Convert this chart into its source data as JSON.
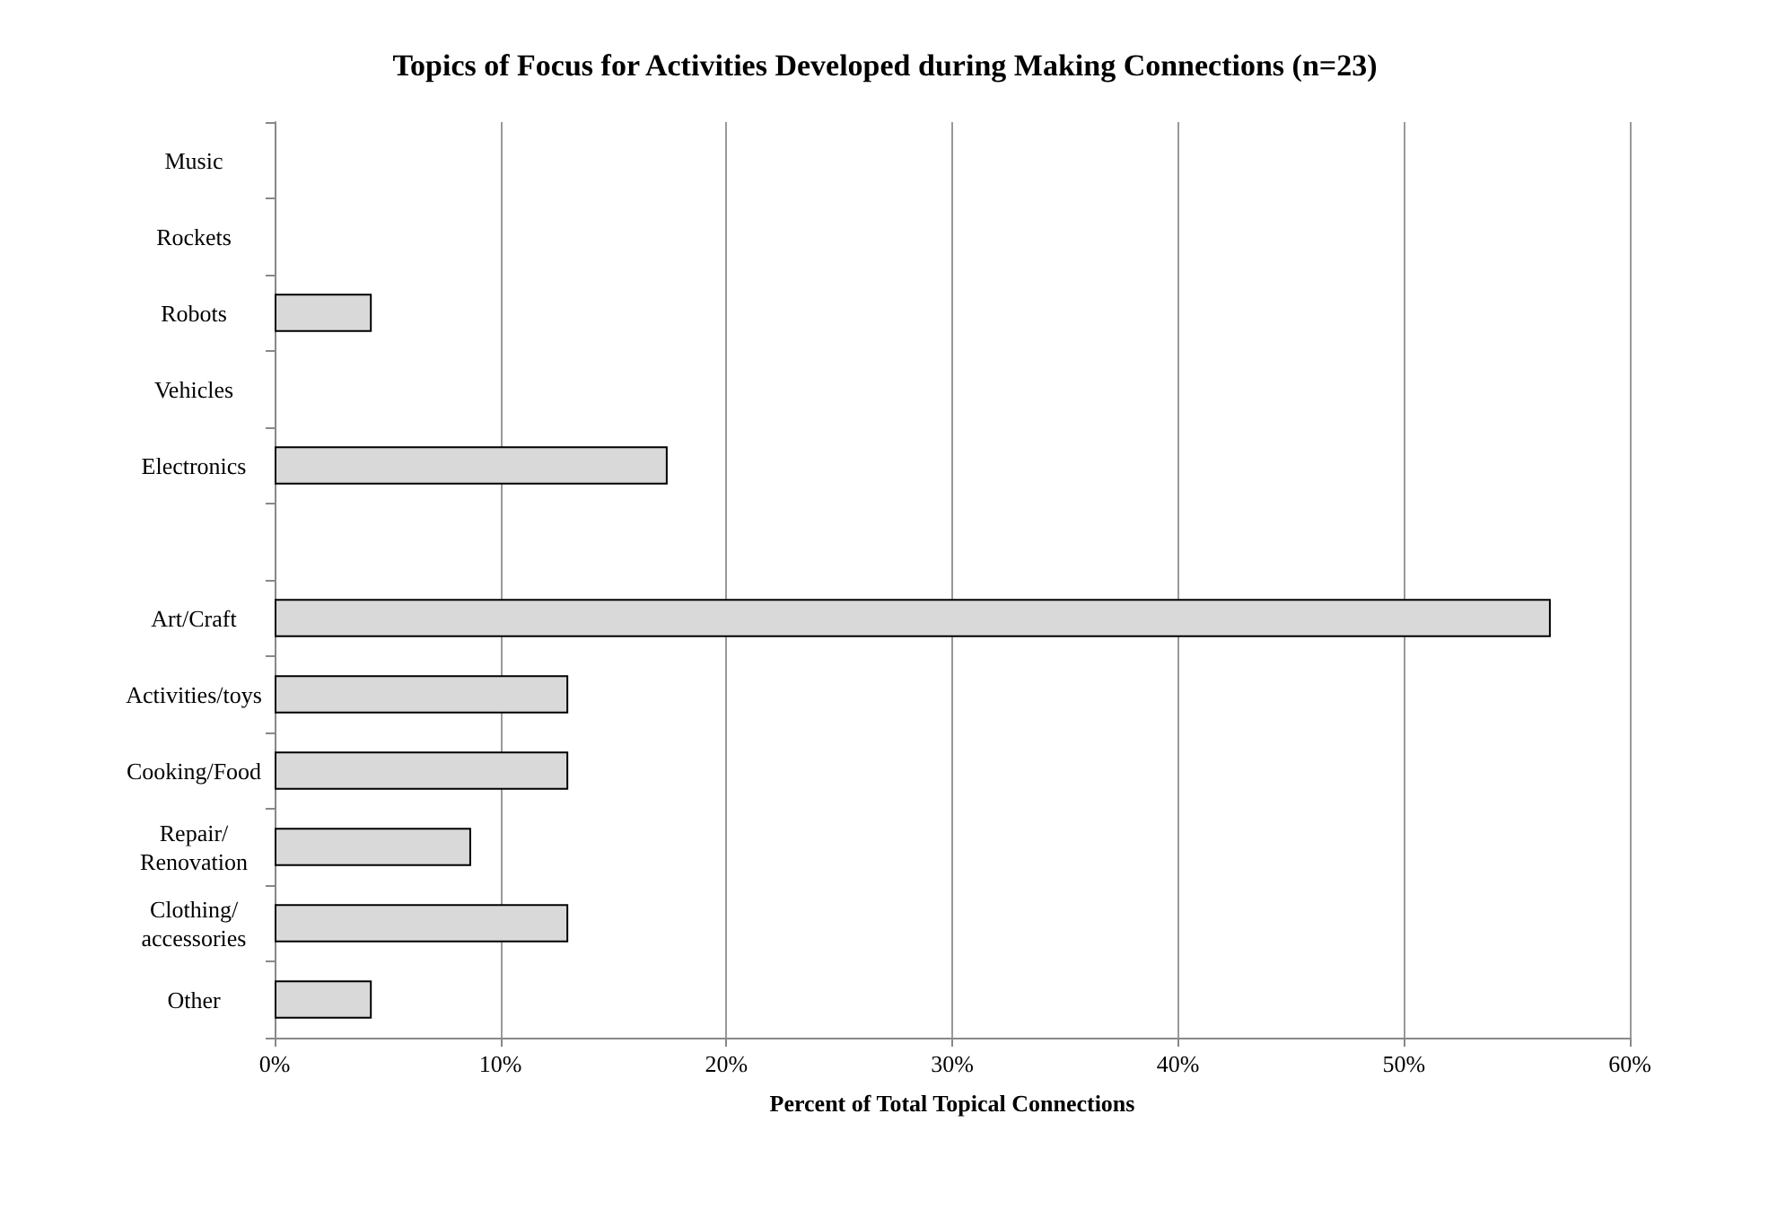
{
  "chart_data": {
    "type": "bar",
    "orientation": "horizontal",
    "title": "Topics of Focus for Activities Developed during Making Connections (n=23)",
    "xlabel": "Percent of Total Topical Connections",
    "categories": [
      "Music",
      "Rockets",
      "Robots",
      "Vehicles",
      "Electronics",
      null,
      "Art/Craft",
      "Activities/toys",
      "Cooking/Food",
      "Repair/\nRenovation",
      "Clothing/\naccessories",
      "Other"
    ],
    "values": [
      0,
      0,
      4.3,
      0,
      17.4,
      null,
      56.5,
      13,
      13,
      8.7,
      13,
      4.3
    ],
    "color": "#d9d9d9",
    "xlim": [
      0,
      60
    ],
    "xticks": [
      {
        "value": 0,
        "label": "0%"
      },
      {
        "value": 10,
        "label": "10%"
      },
      {
        "value": 20,
        "label": "20%"
      },
      {
        "value": 30,
        "label": "30%"
      },
      {
        "value": 40,
        "label": "40%"
      },
      {
        "value": 50,
        "label": "50%"
      },
      {
        "value": 60,
        "label": "60%"
      }
    ],
    "grid": "x"
  }
}
